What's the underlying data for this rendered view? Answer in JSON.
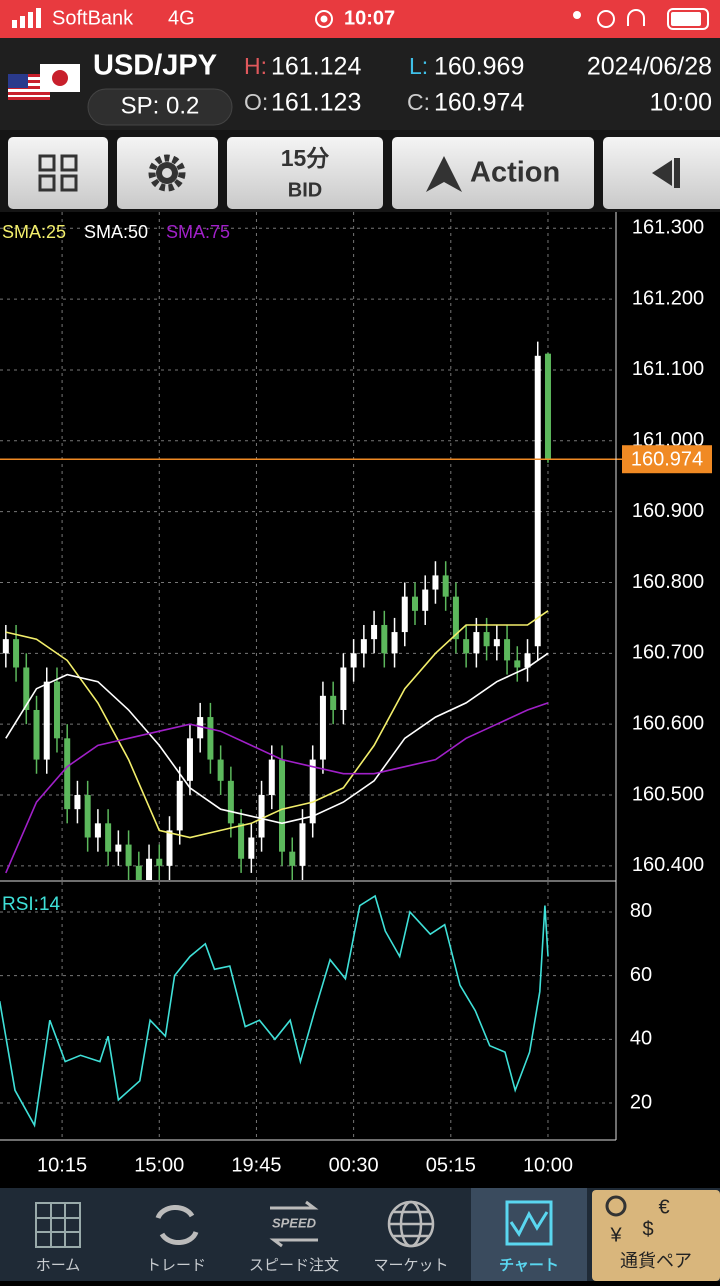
{
  "status_bar": {
    "carrier": "SoftBank",
    "network": "4G",
    "time": "10:07"
  },
  "header": {
    "symbol": "USD/JPY",
    "spread": "SP: 0.2",
    "high_label": "H:",
    "high": "161.124",
    "low_label": "L:",
    "low": "160.969",
    "open_label": "O:",
    "open": "161.123",
    "close_label": "C:",
    "close": "160.974",
    "date": "2024/06/28",
    "time": "10:00"
  },
  "toolbar": {
    "timeframe": "15分",
    "price_type": "BID",
    "action": "Action"
  },
  "chart_data": [
    {
      "type": "candlestick",
      "x": [
        1,
        2,
        3,
        4,
        5,
        6,
        7,
        8,
        9,
        10,
        11,
        12,
        13,
        14,
        15,
        16,
        17,
        18,
        19,
        20,
        21,
        22,
        23,
        24,
        25,
        26,
        27,
        28,
        29,
        30,
        31,
        32,
        33,
        34,
        35,
        36,
        37,
        38,
        39,
        40,
        41,
        42,
        43,
        44,
        45,
        46,
        47,
        48,
        49,
        50,
        51,
        52,
        53,
        54
      ],
      "open": [
        160.7,
        160.72,
        160.68,
        160.62,
        160.55,
        160.66,
        160.58,
        160.48,
        160.5,
        160.44,
        160.46,
        160.42,
        160.43,
        160.4,
        160.38,
        160.41,
        160.4,
        160.45,
        160.52,
        160.58,
        160.61,
        160.55,
        160.52,
        160.46,
        160.41,
        160.44,
        160.5,
        160.55,
        160.42,
        160.4,
        160.46,
        160.55,
        160.64,
        160.62,
        160.68,
        160.7,
        160.72,
        160.74,
        160.7,
        160.73,
        160.78,
        160.76,
        160.79,
        160.81,
        160.78,
        160.72,
        160.7,
        160.73,
        160.71,
        160.72,
        160.69,
        160.68,
        160.71,
        161.123
      ],
      "high": [
        160.74,
        160.74,
        160.7,
        160.64,
        160.68,
        160.68,
        160.6,
        160.52,
        160.52,
        160.48,
        160.48,
        160.45,
        160.45,
        160.42,
        160.43,
        160.43,
        160.47,
        160.54,
        160.6,
        160.63,
        160.63,
        160.57,
        160.54,
        160.48,
        160.46,
        160.52,
        160.57,
        160.57,
        160.44,
        160.48,
        160.57,
        160.66,
        160.66,
        160.7,
        160.72,
        160.74,
        160.76,
        160.76,
        160.75,
        160.8,
        160.8,
        160.81,
        160.83,
        160.83,
        160.8,
        160.74,
        160.75,
        160.75,
        160.74,
        160.74,
        160.71,
        160.72,
        161.14,
        161.124
      ],
      "low": [
        160.68,
        160.66,
        160.6,
        160.53,
        160.53,
        160.56,
        160.46,
        160.46,
        160.42,
        160.42,
        160.4,
        160.4,
        160.38,
        160.36,
        160.36,
        160.38,
        160.38,
        160.43,
        160.5,
        160.56,
        160.53,
        160.5,
        160.44,
        160.39,
        160.39,
        160.42,
        160.48,
        160.4,
        160.38,
        160.38,
        160.44,
        160.53,
        160.6,
        160.6,
        160.66,
        160.68,
        160.7,
        160.68,
        160.68,
        160.71,
        160.74,
        160.74,
        160.77,
        160.76,
        160.7,
        160.68,
        160.68,
        160.69,
        160.69,
        160.67,
        160.66,
        160.66,
        160.69,
        160.969
      ],
      "close": [
        160.72,
        160.68,
        160.62,
        160.55,
        160.66,
        160.58,
        160.48,
        160.5,
        160.44,
        160.46,
        160.42,
        160.43,
        160.4,
        160.38,
        160.41,
        160.4,
        160.45,
        160.52,
        160.58,
        160.61,
        160.55,
        160.52,
        160.46,
        160.41,
        160.44,
        160.5,
        160.55,
        160.42,
        160.4,
        160.46,
        160.55,
        160.64,
        160.62,
        160.68,
        160.7,
        160.72,
        160.74,
        160.7,
        160.73,
        160.78,
        160.76,
        160.79,
        160.81,
        160.78,
        160.72,
        160.7,
        160.73,
        160.71,
        160.72,
        160.69,
        160.68,
        160.7,
        161.12,
        160.974
      ],
      "up_color": "#ffffff",
      "down_color": "#5cb85c",
      "xlim": [
        0.43,
        60.65
      ],
      "ylim": [
        160.38,
        161.323
      ],
      "yticks": [
        {
          "value": 161.3,
          "label": "161.300"
        },
        {
          "value": 161.2,
          "label": "161.200"
        },
        {
          "value": 161.1,
          "label": "161.100"
        },
        {
          "value": 161.0,
          "label": "161.000"
        },
        {
          "value": 160.9,
          "label": "160.900"
        },
        {
          "value": 160.8,
          "label": "160.800"
        },
        {
          "value": 160.7,
          "label": "160.700"
        },
        {
          "value": 160.6,
          "label": "160.600"
        },
        {
          "value": 160.5,
          "label": "160.500"
        },
        {
          "value": 160.4,
          "label": "160.400"
        }
      ],
      "grid": true,
      "current_price": {
        "value": 160.974,
        "label": "160.974",
        "color": "#f08a24"
      },
      "overlays": [
        {
          "name": "SMA:25",
          "color": "#f2ee6b",
          "x": [
            1,
            4,
            7,
            10,
            13,
            16,
            19,
            22,
            25,
            28,
            31,
            34,
            37,
            40,
            43,
            46,
            49,
            52,
            54
          ],
          "values": [
            160.73,
            160.72,
            160.69,
            160.63,
            160.55,
            160.45,
            160.44,
            160.45,
            160.46,
            160.48,
            160.49,
            160.51,
            160.57,
            160.65,
            160.7,
            160.74,
            160.74,
            160.74,
            160.76
          ]
        },
        {
          "name": "SMA:50",
          "color": "#ffffff",
          "x": [
            1,
            4,
            7,
            10,
            13,
            16,
            19,
            22,
            25,
            28,
            31,
            34,
            37,
            40,
            43,
            46,
            49,
            52,
            54
          ],
          "values": [
            160.58,
            160.65,
            160.67,
            160.66,
            160.62,
            160.57,
            160.51,
            160.48,
            160.47,
            160.46,
            160.47,
            160.49,
            160.52,
            160.58,
            160.61,
            160.63,
            160.66,
            160.68,
            160.7
          ]
        },
        {
          "name": "SMA:75",
          "color": "#a020c8",
          "x": [
            1,
            4,
            7,
            10,
            13,
            16,
            19,
            22,
            25,
            28,
            31,
            34,
            37,
            40,
            43,
            46,
            49,
            52,
            54
          ],
          "values": [
            160.39,
            160.49,
            160.54,
            160.57,
            160.58,
            160.59,
            160.6,
            160.59,
            160.57,
            160.55,
            160.54,
            160.53,
            160.53,
            160.54,
            160.55,
            160.58,
            160.6,
            160.62,
            160.63
          ]
        }
      ]
    },
    {
      "type": "line",
      "series": [
        {
          "name": "RSI:14",
          "color": "#3fe0d8",
          "x": [
            0.4,
            1.9,
            3.8,
            5.3,
            6.8,
            8.3,
            10.2,
            11,
            12,
            14.1,
            15.1,
            16.6,
            17.5,
            19,
            20.5,
            21.4,
            22.9,
            24.4,
            25.8,
            27.3,
            28.8,
            29.8,
            31.2,
            32.7,
            34.2,
            35.6,
            37.1,
            38.1,
            39.5,
            40.5,
            42.5,
            43.9,
            45.4,
            46.9,
            48.3,
            49.8,
            50.8,
            52.2,
            53.2,
            53.7,
            54
          ],
          "values": [
            52,
            24,
            13,
            46,
            33,
            35,
            33,
            41,
            21,
            27,
            46,
            41,
            60,
            66,
            70,
            62,
            63,
            44,
            46,
            40,
            46,
            33,
            49,
            65,
            59,
            82,
            85,
            74,
            66,
            80,
            73,
            76,
            57,
            49,
            38,
            36,
            24,
            36,
            55,
            82,
            66
          ]
        }
      ],
      "xlim": [
        0.43,
        60.65
      ],
      "ylim": [
        8.4,
        89.4
      ],
      "yticks": [
        20,
        40,
        60,
        80
      ],
      "xticks": [
        {
          "value": 6.5,
          "label": "10:15"
        },
        {
          "value": 16,
          "label": "15:00"
        },
        {
          "value": 25.5,
          "label": "19:45"
        },
        {
          "value": 35,
          "label": "00:30"
        },
        {
          "value": 44.5,
          "label": "05:15"
        },
        {
          "value": 54,
          "label": "10:00"
        }
      ],
      "grid": true
    }
  ],
  "tab_bar": {
    "items": [
      "ホーム",
      "トレード",
      "スピード注文",
      "マーケット",
      "チャート",
      "通貨ペア"
    ],
    "selected": 4
  }
}
